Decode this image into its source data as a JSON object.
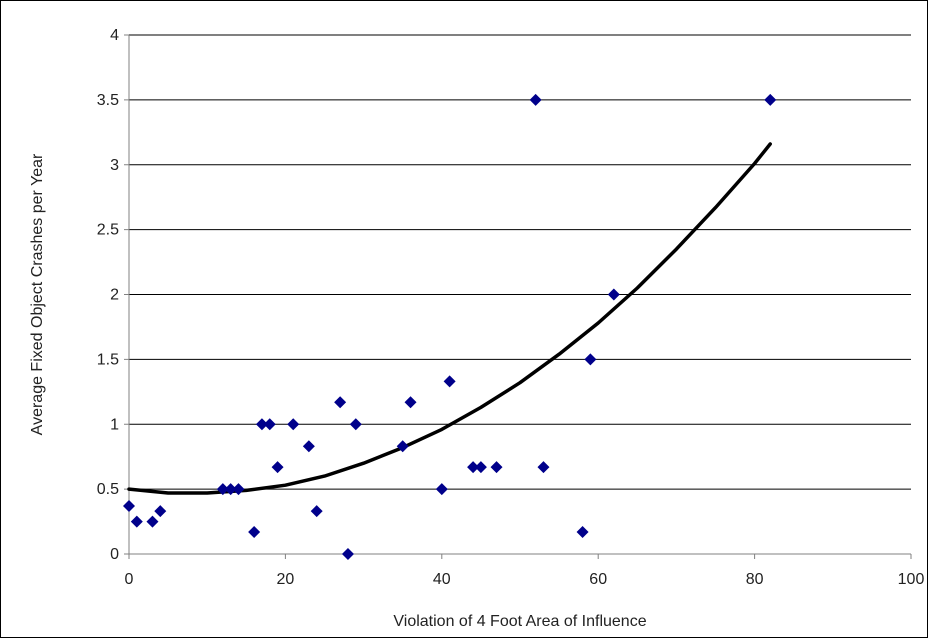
{
  "chart_data": {
    "type": "scatter",
    "xlabel": "Violation of 4 Foot Area of Influence",
    "ylabel": "Average Fixed Object Crashes per Year",
    "xlim": [
      0,
      100
    ],
    "ylim": [
      0,
      4
    ],
    "x_ticks": [
      0,
      20,
      40,
      60,
      80,
      100
    ],
    "y_ticks": [
      0,
      0.5,
      1,
      1.5,
      2,
      2.5,
      3,
      3.5,
      4
    ],
    "y_tick_labels": [
      "0",
      "0.5",
      "1",
      "1.5",
      "2",
      "2.5",
      "3",
      "3.5",
      "4"
    ],
    "grid": "horizontal",
    "legend": "none",
    "series": [
      {
        "type": "scatter",
        "marker": "diamond",
        "color": "#00008B",
        "points": [
          [
            0,
            0.37
          ],
          [
            1,
            0.25
          ],
          [
            3,
            0.25
          ],
          [
            4,
            0.33
          ],
          [
            12,
            0.5
          ],
          [
            13,
            0.5
          ],
          [
            14,
            0.5
          ],
          [
            16,
            0.17
          ],
          [
            17,
            1.0
          ],
          [
            18,
            1.0
          ],
          [
            19,
            0.67
          ],
          [
            21,
            1.0
          ],
          [
            23,
            0.83
          ],
          [
            24,
            0.33
          ],
          [
            27,
            1.17
          ],
          [
            28,
            0.0
          ],
          [
            29,
            1.0
          ],
          [
            35,
            0.83
          ],
          [
            36,
            1.17
          ],
          [
            40,
            0.5
          ],
          [
            41,
            1.33
          ],
          [
            44,
            0.67
          ],
          [
            45,
            0.67
          ],
          [
            47,
            0.67
          ],
          [
            52,
            3.5
          ],
          [
            53,
            0.67
          ],
          [
            58,
            0.17
          ],
          [
            59,
            1.5
          ],
          [
            62,
            2.0
          ],
          [
            82,
            3.5
          ]
        ]
      },
      {
        "type": "line",
        "style": "polynomial-trendline",
        "color": "#000000",
        "points": [
          [
            0,
            0.5
          ],
          [
            5,
            0.47
          ],
          [
            10,
            0.47
          ],
          [
            15,
            0.49
          ],
          [
            20,
            0.53
          ],
          [
            25,
            0.6
          ],
          [
            30,
            0.7
          ],
          [
            35,
            0.82
          ],
          [
            40,
            0.96
          ],
          [
            45,
            1.13
          ],
          [
            50,
            1.32
          ],
          [
            55,
            1.54
          ],
          [
            60,
            1.78
          ],
          [
            65,
            2.05
          ],
          [
            70,
            2.35
          ],
          [
            75,
            2.67
          ],
          [
            80,
            3.01
          ],
          [
            82,
            3.16
          ]
        ]
      }
    ]
  }
}
